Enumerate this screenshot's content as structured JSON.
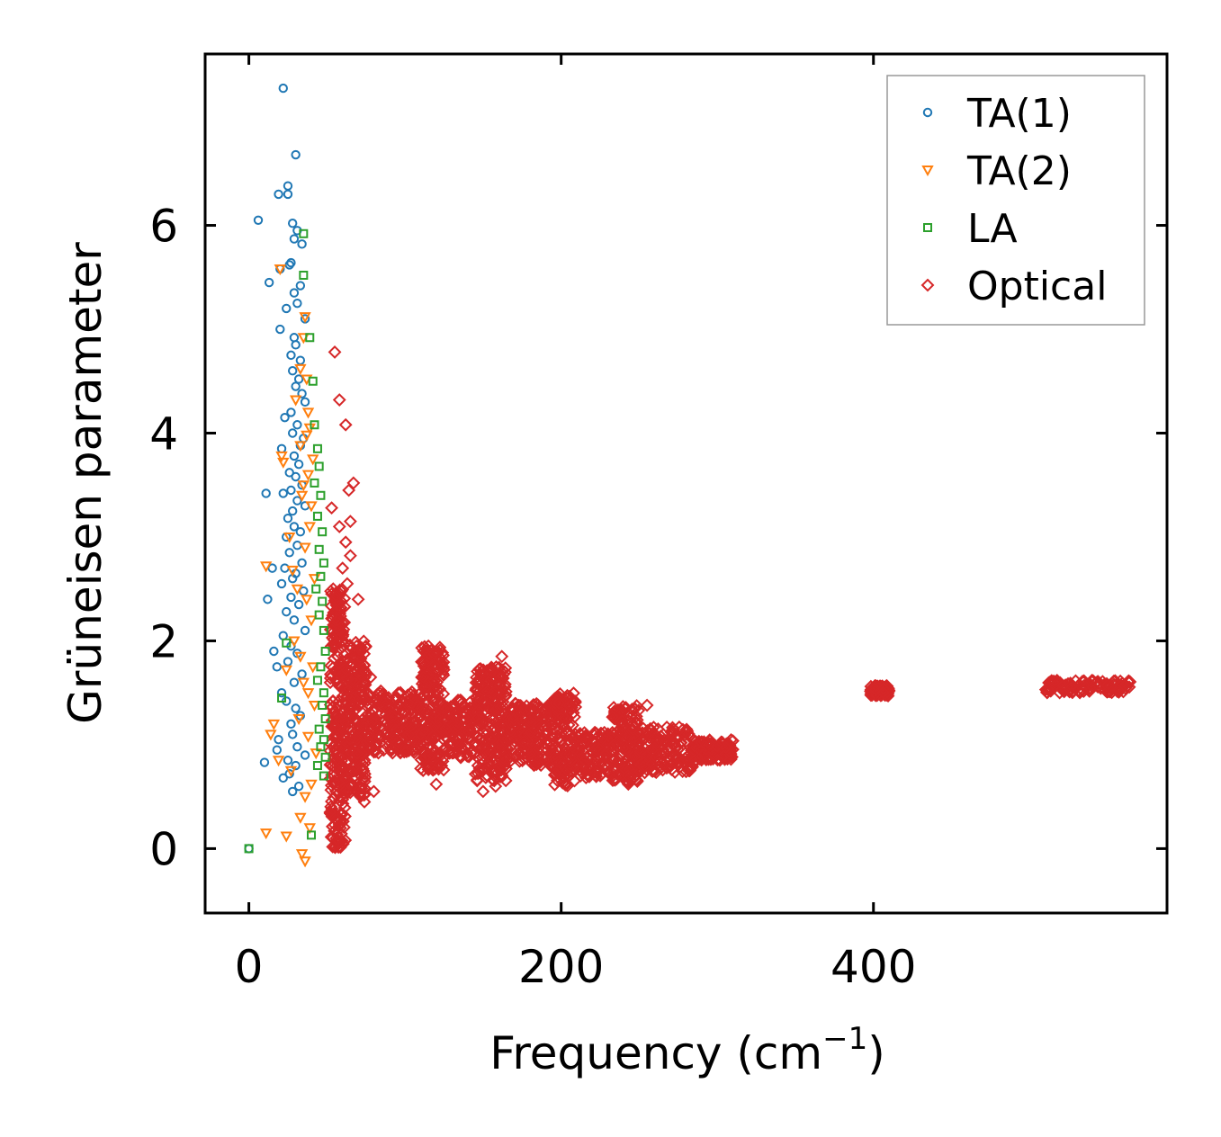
{
  "chart_data": {
    "type": "scatter",
    "title": "",
    "xlabel": "Frequency (cm",
    "xlabel_sup": "−1",
    "xlabel_suffix": ")",
    "ylabel": "Grüneisen parameter",
    "xlim": [
      -28,
      588
    ],
    "ylim": [
      -0.62,
      7.65
    ],
    "xticks": [
      0,
      200,
      400
    ],
    "yticks": [
      0,
      2,
      4,
      6
    ],
    "xtick_labels": [
      "0",
      "200",
      "400"
    ],
    "ytick_labels": [
      "0",
      "2",
      "4",
      "6"
    ],
    "grid": false,
    "legend_position": "top-right",
    "series": [
      {
        "name": "TA(1)",
        "marker": "circle",
        "color": "#1f77b4",
        "x": [
          22,
          25,
          30,
          25,
          19,
          6,
          28,
          31,
          29,
          34,
          27,
          26,
          20,
          13,
          33,
          29,
          24,
          31,
          36,
          20,
          29,
          30,
          27,
          33,
          28,
          32,
          30,
          34,
          36,
          27,
          23,
          31,
          28,
          35,
          33,
          21,
          29,
          32,
          26,
          30,
          34,
          27,
          22,
          31,
          11,
          36,
          28,
          25,
          29,
          33,
          24,
          31,
          26,
          34,
          23,
          30,
          28,
          12,
          21,
          35,
          27,
          32,
          15,
          24,
          29,
          36,
          16,
          22,
          27,
          31,
          25,
          18,
          34,
          29,
          21,
          24,
          30,
          33,
          27,
          10,
          28,
          19,
          31,
          18,
          36,
          25,
          30,
          26,
          22,
          32,
          28,
          0
        ],
        "y": [
          7.32,
          6.38,
          6.68,
          6.3,
          6.3,
          6.05,
          6.02,
          5.95,
          5.87,
          5.82,
          5.64,
          5.62,
          5.58,
          5.45,
          5.42,
          5.35,
          5.2,
          5.25,
          5.1,
          5.0,
          4.92,
          4.85,
          4.75,
          4.7,
          4.6,
          4.52,
          4.45,
          4.38,
          4.3,
          4.2,
          4.15,
          4.08,
          4.0,
          3.95,
          3.88,
          3.85,
          3.78,
          3.7,
          3.62,
          3.58,
          3.5,
          3.45,
          3.42,
          3.35,
          3.42,
          3.3,
          3.25,
          3.18,
          3.1,
          3.05,
          3.0,
          2.92,
          2.85,
          2.75,
          2.7,
          2.65,
          2.6,
          2.4,
          2.55,
          2.48,
          2.42,
          2.35,
          2.7,
          2.28,
          2.2,
          2.1,
          1.9,
          2.05,
          1.95,
          1.88,
          1.8,
          1.75,
          1.68,
          1.6,
          1.5,
          1.42,
          1.35,
          1.28,
          1.2,
          0.83,
          1.1,
          1.05,
          0.98,
          0.95,
          0.9,
          0.85,
          0.8,
          0.72,
          0.68,
          0.6,
          0.55,
          0.0
        ]
      },
      {
        "name": "TA(2)",
        "marker": "triangle_down",
        "color": "#ff7f0e",
        "x": [
          20,
          36,
          35,
          33,
          37,
          21,
          38,
          30,
          39,
          37,
          33,
          41,
          22,
          38,
          35,
          11,
          34,
          40,
          26,
          28,
          39,
          36,
          42,
          31,
          37,
          40,
          29,
          33,
          41,
          35,
          38,
          16,
          42,
          32,
          24,
          38,
          14,
          27,
          19,
          43,
          40,
          36,
          33,
          39,
          11,
          24,
          34,
          36
        ],
        "y": [
          5.58,
          5.12,
          4.92,
          4.62,
          4.52,
          3.78,
          4.2,
          4.32,
          4.05,
          3.98,
          3.88,
          3.75,
          3.72,
          3.6,
          3.5,
          2.72,
          3.4,
          3.3,
          3.0,
          2.68,
          3.1,
          2.9,
          2.6,
          2.5,
          2.4,
          2.2,
          2.0,
          1.85,
          1.75,
          1.6,
          1.5,
          1.2,
          1.38,
          1.25,
          1.72,
          1.08,
          1.1,
          0.75,
          0.85,
          0.92,
          0.62,
          0.5,
          0.3,
          0.2,
          0.15,
          0.12,
          -0.05,
          -0.12
        ]
      },
      {
        "name": "LA",
        "marker": "square",
        "color": "#2ca02c",
        "x": [
          35,
          35,
          39,
          41,
          42,
          44,
          45,
          42,
          46,
          44,
          47,
          45,
          48,
          46,
          43,
          47,
          45,
          48,
          24,
          49,
          46,
          44,
          48,
          21,
          47,
          49,
          45,
          48,
          46,
          49,
          44,
          48,
          40,
          0
        ],
        "y": [
          5.92,
          5.52,
          4.92,
          4.5,
          4.08,
          3.85,
          3.68,
          3.52,
          3.4,
          3.2,
          3.05,
          2.88,
          2.75,
          2.62,
          2.5,
          2.38,
          2.25,
          2.1,
          1.98,
          1.9,
          1.75,
          1.62,
          1.5,
          1.45,
          1.38,
          1.25,
          1.15,
          1.05,
          0.98,
          0.88,
          0.8,
          0.7,
          0.13,
          0.0
        ]
      },
      {
        "name": "Optical",
        "marker": "diamond",
        "color": "#d62728",
        "x": [
          55,
          58,
          62,
          64,
          67,
          53,
          65,
          58,
          62,
          65,
          60,
          63,
          70,
          54,
          56,
          57,
          74,
          80,
          66,
          120,
          150,
          158,
          115,
          255,
          70,
          78,
          57,
          112,
          118,
          162,
          52,
          56
        ],
        "y": [
          4.78,
          4.32,
          4.08,
          3.45,
          3.52,
          3.28,
          3.15,
          3.1,
          2.95,
          2.82,
          2.7,
          2.55,
          2.4,
          2.5,
          2.3,
          2.2,
          0.45,
          0.55,
          0.6,
          0.62,
          0.55,
          0.6,
          1.95,
          1.38,
          1.8,
          1.65,
          1.85,
          1.9,
          1.75,
          1.85,
          0.35,
          0.1
        ],
        "dense_bands": [
          {
            "x_range": [
              52,
              62
            ],
            "y_center": 1.25,
            "y_halfwidth": 1.25
          },
          {
            "x_range": [
              62,
              75
            ],
            "y_center": 1.25,
            "y_halfwidth": 0.75
          },
          {
            "x_range": [
              75,
              110
            ],
            "y_center": 1.22,
            "y_halfwidth": 0.3
          },
          {
            "x_range": [
              110,
              125
            ],
            "y_center": 1.35,
            "y_halfwidth": 0.6
          },
          {
            "x_range": [
              125,
              145
            ],
            "y_center": 1.15,
            "y_halfwidth": 0.28
          },
          {
            "x_range": [
              145,
              165
            ],
            "y_center": 1.2,
            "y_halfwidth": 0.55
          },
          {
            "x_range": [
              165,
              195
            ],
            "y_center": 1.1,
            "y_halfwidth": 0.3
          },
          {
            "x_range": [
              195,
              210
            ],
            "y_center": 1.05,
            "y_halfwidth": 0.45
          },
          {
            "x_range": [
              210,
              232
            ],
            "y_center": 0.9,
            "y_halfwidth": 0.22
          },
          {
            "x_range": [
              232,
              250
            ],
            "y_center": 1.0,
            "y_halfwidth": 0.38
          },
          {
            "x_range": [
              250,
              285
            ],
            "y_center": 0.95,
            "y_halfwidth": 0.22
          },
          {
            "x_range": [
              285,
              310
            ],
            "y_center": 0.95,
            "y_halfwidth": 0.1
          },
          {
            "x_range": [
              398,
              410
            ],
            "y_center": 1.52,
            "y_halfwidth": 0.05
          },
          {
            "x_range": [
              510,
              565
            ],
            "y_center": 1.56,
            "y_halfwidth": 0.06
          }
        ]
      }
    ]
  }
}
